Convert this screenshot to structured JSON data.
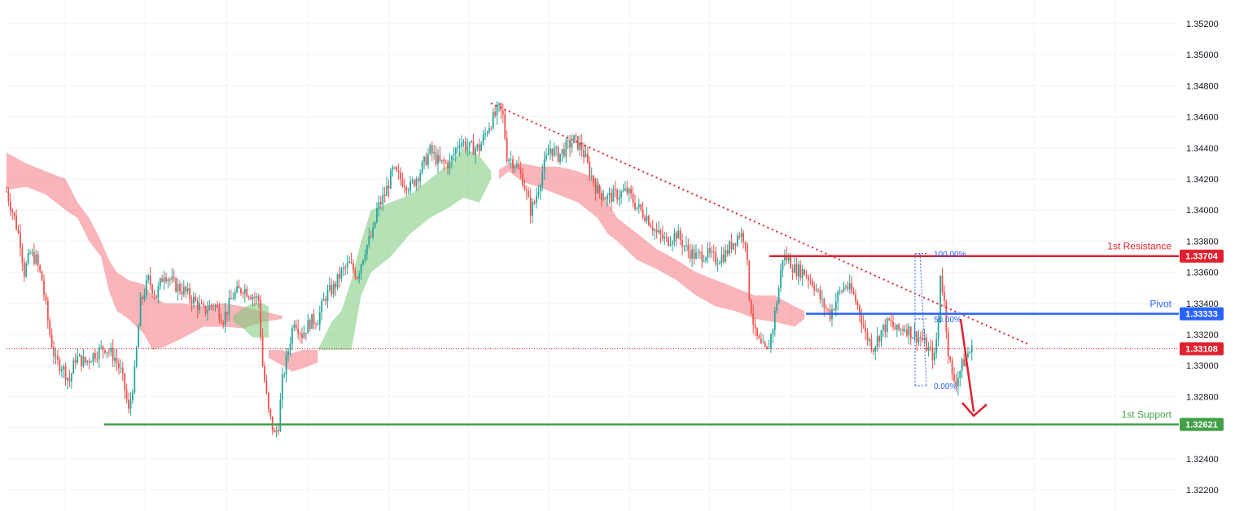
{
  "chart_data": {
    "type": "candlestick",
    "y_axis": {
      "ticks": [
        "1.35200",
        "1.35000",
        "1.34800",
        "1.34600",
        "1.34400",
        "1.34200",
        "1.34000",
        "1.33800",
        "1.33600",
        "1.33400",
        "1.33200",
        "1.33000",
        "1.32800",
        "1.32600",
        "1.32400",
        "1.32200"
      ],
      "range": [
        1.3212,
        1.3536
      ]
    },
    "levels": [
      {
        "name": "1st Resistance",
        "value": 1.33704,
        "tag": "1.33704",
        "color": "#e0212f"
      },
      {
        "name": "Pivot",
        "value": 1.33333,
        "tag": "1.33333",
        "color": "#2962ff"
      },
      {
        "name": "1st Support",
        "value": 1.32621,
        "tag": "1.32621",
        "color": "#43a047"
      }
    ],
    "current_price": {
      "value": 1.33108,
      "tag": "1.33108",
      "color": "#e0212f"
    },
    "fibonacci": [
      {
        "label": "100.00%",
        "value": 1.3372
      },
      {
        "label": "50.00%",
        "value": 1.333
      },
      {
        "label": "0.00%",
        "value": 1.3287
      }
    ],
    "price_path": [
      [
        0,
        1.3412
      ],
      [
        4,
        1.3395
      ],
      [
        7,
        1.338
      ],
      [
        9,
        1.336
      ],
      [
        12,
        1.3372
      ],
      [
        15,
        1.3368
      ],
      [
        18,
        1.3355
      ],
      [
        22,
        1.332
      ],
      [
        25,
        1.3302
      ],
      [
        28,
        1.33
      ],
      [
        32,
        1.329
      ],
      [
        35,
        1.3305
      ],
      [
        40,
        1.3302
      ],
      [
        45,
        1.3308
      ],
      [
        50,
        1.3312
      ],
      [
        55,
        1.3305
      ],
      [
        58,
        1.3296
      ],
      [
        60,
        1.3285
      ],
      [
        62,
        1.327
      ],
      [
        65,
        1.3295
      ],
      [
        68,
        1.334
      ],
      [
        72,
        1.3355
      ],
      [
        76,
        1.3345
      ],
      [
        80,
        1.336
      ],
      [
        85,
        1.3352
      ],
      [
        90,
        1.3348
      ],
      [
        95,
        1.3342
      ],
      [
        100,
        1.3335
      ],
      [
        105,
        1.334
      ],
      [
        110,
        1.333
      ],
      [
        115,
        1.3345
      ],
      [
        120,
        1.335
      ],
      [
        125,
        1.3345
      ],
      [
        128,
        1.3342
      ],
      [
        130,
        1.33
      ],
      [
        133,
        1.327
      ],
      [
        136,
        1.3255
      ],
      [
        138,
        1.3262
      ],
      [
        140,
        1.329
      ],
      [
        143,
        1.331
      ],
      [
        146,
        1.333
      ],
      [
        150,
        1.332
      ],
      [
        154,
        1.3328
      ],
      [
        158,
        1.333
      ],
      [
        162,
        1.3345
      ],
      [
        166,
        1.335
      ],
      [
        170,
        1.336
      ],
      [
        174,
        1.3365
      ],
      [
        178,
        1.3358
      ],
      [
        182,
        1.3375
      ],
      [
        186,
        1.3385
      ],
      [
        188,
        1.34
      ],
      [
        192,
        1.341
      ],
      [
        196,
        1.3425
      ],
      [
        200,
        1.342
      ],
      [
        205,
        1.3415
      ],
      [
        210,
        1.3425
      ],
      [
        215,
        1.3438
      ],
      [
        220,
        1.343
      ],
      [
        225,
        1.343
      ],
      [
        230,
        1.3445
      ],
      [
        235,
        1.344
      ],
      [
        240,
        1.344
      ],
      [
        245,
        1.3455
      ],
      [
        250,
        1.3465
      ],
      [
        252,
        1.346
      ],
      [
        254,
        1.3435
      ],
      [
        258,
        1.343
      ],
      [
        262,
        1.342
      ],
      [
        266,
        1.34
      ],
      [
        268,
        1.3405
      ],
      [
        272,
        1.3425
      ],
      [
        276,
        1.344
      ],
      [
        280,
        1.3435
      ],
      [
        284,
        1.344
      ],
      [
        288,
        1.3445
      ],
      [
        292,
        1.344
      ],
      [
        296,
        1.3425
      ],
      [
        300,
        1.3412
      ],
      [
        305,
        1.3408
      ],
      [
        310,
        1.341
      ],
      [
        315,
        1.3412
      ],
      [
        320,
        1.3402
      ],
      [
        325,
        1.3396
      ],
      [
        330,
        1.3385
      ],
      [
        335,
        1.338
      ],
      [
        340,
        1.3385
      ],
      [
        345,
        1.3375
      ],
      [
        350,
        1.337
      ],
      [
        355,
        1.3372
      ],
      [
        360,
        1.3368
      ],
      [
        365,
        1.3372
      ],
      [
        368,
        1.3378
      ],
      [
        372,
        1.3385
      ],
      [
        375,
        1.3382
      ],
      [
        377,
        1.3345
      ],
      [
        380,
        1.332
      ],
      [
        383,
        1.3312
      ],
      [
        386,
        1.3308
      ],
      [
        389,
        1.3325
      ],
      [
        392,
        1.335
      ],
      [
        394,
        1.337
      ],
      [
        397,
        1.3368
      ],
      [
        400,
        1.3362
      ],
      [
        405,
        1.336
      ],
      [
        410,
        1.3352
      ],
      [
        414,
        1.334
      ],
      [
        418,
        1.3333
      ],
      [
        422,
        1.3345
      ],
      [
        426,
        1.3352
      ],
      [
        430,
        1.3345
      ],
      [
        433,
        1.3335
      ],
      [
        436,
        1.332
      ],
      [
        440,
        1.3312
      ],
      [
        444,
        1.3322
      ],
      [
        448,
        1.3328
      ],
      [
        452,
        1.3322
      ],
      [
        456,
        1.3325
      ],
      [
        460,
        1.332
      ],
      [
        464,
        1.3318
      ],
      [
        468,
        1.331
      ],
      [
        471,
        1.3305
      ],
      [
        473,
        1.3328
      ],
      [
        474,
        1.336
      ],
      [
        476,
        1.334
      ],
      [
        478,
        1.331
      ],
      [
        480,
        1.3292
      ],
      [
        482,
        1.329
      ],
      [
        485,
        1.33
      ],
      [
        488,
        1.3308
      ],
      [
        490,
        1.331
      ]
    ],
    "cloud_segments": [
      {
        "color": "red",
        "points": [
          [
            0,
            1.3437,
            1.3413
          ],
          [
            10,
            1.343,
            1.3415
          ],
          [
            20,
            1.3425,
            1.341
          ],
          [
            30,
            1.342,
            1.34
          ],
          [
            36,
            1.3405,
            1.3395
          ],
          [
            42,
            1.3395,
            1.338
          ],
          [
            48,
            1.338,
            1.337
          ],
          [
            52,
            1.3368,
            1.3348
          ],
          [
            56,
            1.336,
            1.3335
          ],
          [
            62,
            1.3355,
            1.333
          ],
          [
            70,
            1.3352,
            1.332
          ],
          [
            74,
            1.3345,
            1.331
          ],
          [
            80,
            1.334,
            1.3312
          ],
          [
            90,
            1.334,
            1.3318
          ],
          [
            100,
            1.3338,
            1.3325
          ],
          [
            110,
            1.334,
            1.3325
          ],
          [
            120,
            1.3338,
            1.3324
          ],
          [
            130,
            1.3335,
            1.3328
          ],
          [
            140,
            1.3332,
            1.333
          ]
        ]
      },
      {
        "color": "green",
        "points": [
          [
            115,
            1.3332,
            1.3328
          ],
          [
            120,
            1.3337,
            1.3324
          ],
          [
            125,
            1.334,
            1.3318
          ],
          [
            130,
            1.334,
            1.3318
          ],
          [
            133,
            1.3338,
            1.3318
          ]
        ]
      },
      {
        "color": "red",
        "points": [
          [
            133,
            1.331,
            1.3305
          ],
          [
            140,
            1.331,
            1.33
          ],
          [
            145,
            1.3308,
            1.3296
          ],
          [
            150,
            1.331,
            1.3298
          ],
          [
            158,
            1.331,
            1.3302
          ]
        ]
      },
      {
        "color": "green",
        "points": [
          [
            158,
            1.331,
            1.331
          ],
          [
            165,
            1.3328,
            1.331
          ],
          [
            170,
            1.3335,
            1.331
          ],
          [
            175,
            1.3355,
            1.331
          ],
          [
            180,
            1.338,
            1.3345
          ],
          [
            185,
            1.34,
            1.336
          ],
          [
            195,
            1.3405,
            1.337
          ],
          [
            205,
            1.341,
            1.3385
          ],
          [
            215,
            1.342,
            1.3395
          ],
          [
            225,
            1.343,
            1.3402
          ],
          [
            232,
            1.344,
            1.3408
          ],
          [
            240,
            1.3435,
            1.3405
          ],
          [
            246,
            1.3425,
            1.342
          ]
        ]
      },
      {
        "color": "red",
        "points": [
          [
            250,
            1.3426,
            1.342
          ],
          [
            255,
            1.343,
            1.3425
          ],
          [
            262,
            1.343,
            1.3418
          ],
          [
            270,
            1.3428,
            1.3415
          ],
          [
            280,
            1.3428,
            1.341
          ],
          [
            290,
            1.3425,
            1.3405
          ],
          [
            300,
            1.342,
            1.3395
          ],
          [
            305,
            1.3405,
            1.3385
          ],
          [
            310,
            1.3395,
            1.338
          ],
          [
            320,
            1.3385,
            1.3368
          ],
          [
            330,
            1.3375,
            1.3362
          ],
          [
            340,
            1.3368,
            1.3355
          ],
          [
            350,
            1.336,
            1.3345
          ],
          [
            360,
            1.3355,
            1.3338
          ],
          [
            370,
            1.335,
            1.3335
          ],
          [
            380,
            1.3345,
            1.333
          ],
          [
            390,
            1.3345,
            1.3328
          ],
          [
            400,
            1.3338,
            1.3325
          ],
          [
            405,
            1.3335,
            1.333
          ]
        ]
      }
    ]
  }
}
